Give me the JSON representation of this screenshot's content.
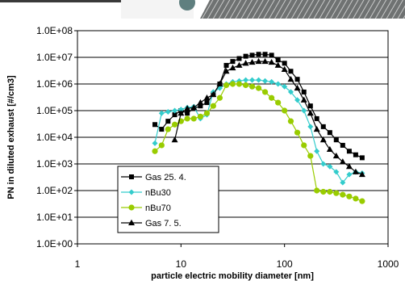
{
  "chart_data": {
    "type": "line",
    "xlabel": "particle electric mobility diameter [nm]",
    "ylabel": "PN in diluted exhaust [#/cm3]",
    "x_scale": "log",
    "y_scale": "log",
    "xlim": [
      1,
      1000
    ],
    "ylim": [
      1,
      100000000
    ],
    "x_ticks": [
      1,
      10,
      100,
      1000
    ],
    "x_tick_labels": [
      "1",
      "10",
      "100",
      "1000"
    ],
    "y_ticks": [
      1,
      10,
      100,
      1000,
      10000,
      100000,
      1000000,
      10000000,
      100000000
    ],
    "y_tick_labels": [
      "1.0E+00",
      "1.0E+01",
      "1.0E+02",
      "1.0E+03",
      "1.0E+04",
      "1.0E+05",
      "1.0E+06",
      "1.0E+07",
      "1.0E+08"
    ],
    "grid": "horizontal major",
    "legend_position": "lower-left",
    "series": [
      {
        "name": "Gas 25. 4.",
        "color": "#000000",
        "marker": "square",
        "x": [
          5.6,
          6.5,
          7.5,
          8.7,
          10,
          11.5,
          13.3,
          15.4,
          17.8,
          20.5,
          23.7,
          27.4,
          31.6,
          36.5,
          42.2,
          48.7,
          56.2,
          64.9,
          75,
          86.6,
          100,
          115,
          133,
          154,
          178,
          205,
          237,
          274,
          316,
          365,
          422,
          487,
          562
        ],
        "y": [
          30000,
          20000,
          40000,
          70000,
          100000,
          80000,
          120000,
          150000,
          200000,
          400000,
          1000000,
          5000000,
          7000000,
          9000000,
          11000000,
          12000000,
          13000000,
          13000000,
          12000000,
          8000000,
          6000000,
          3000000,
          1500000,
          500000,
          150000,
          50000,
          25000,
          15000,
          8000,
          5000,
          3000,
          2200,
          1700
        ]
      },
      {
        "name": "nBu30",
        "color": "#33CCCC",
        "marker": "diamond",
        "x": [
          5.6,
          6.5,
          7.5,
          8.7,
          10,
          11.5,
          13.3,
          15.4,
          17.8,
          20.5,
          23.7,
          27.4,
          31.6,
          36.5,
          42.2,
          48.7,
          56.2,
          64.9,
          75,
          86.6,
          100,
          115,
          133,
          154,
          178,
          205,
          237,
          274,
          316,
          365,
          422,
          487,
          562
        ],
        "y": [
          6000,
          80000,
          90000,
          100000,
          110000,
          130000,
          140000,
          50000,
          70000,
          500000,
          700000,
          1000000,
          1200000,
          1300000,
          1400000,
          1400000,
          1400000,
          1300000,
          1200000,
          1000000,
          800000,
          500000,
          250000,
          100000,
          25000,
          3000,
          1000,
          800,
          500,
          200,
          400,
          500,
          450
        ]
      },
      {
        "name": "nBu70",
        "color": "#99CC00",
        "marker": "circle",
        "x": [
          5.6,
          6.5,
          7.5,
          8.7,
          10,
          11.5,
          13.3,
          15.4,
          17.8,
          20.5,
          23.7,
          27.4,
          31.6,
          36.5,
          42.2,
          48.7,
          56.2,
          64.9,
          75,
          86.6,
          100,
          115,
          133,
          154,
          178,
          205,
          237,
          274,
          316,
          365,
          422,
          487,
          562
        ],
        "y": [
          3000,
          5000,
          20000,
          30000,
          40000,
          50000,
          50000,
          60000,
          80000,
          150000,
          300000,
          900000,
          1000000,
          1000000,
          900000,
          800000,
          700000,
          500000,
          300000,
          200000,
          100000,
          40000,
          15000,
          5000,
          2000,
          100,
          90,
          90,
          80,
          70,
          60,
          50,
          40
        ]
      },
      {
        "name": "Gas 7. 5.",
        "color": "#000000",
        "marker": "triangle",
        "x": [
          8.7,
          10,
          11.5,
          13.3,
          15.4,
          17.8,
          20.5,
          23.7,
          27.4,
          31.6,
          36.5,
          42.2,
          48.7,
          56.2,
          64.9,
          75,
          86.6,
          100,
          115,
          133,
          154,
          178,
          205,
          237,
          274,
          316,
          365,
          422,
          487,
          562
        ],
        "y": [
          8000,
          80000,
          120000,
          130000,
          200000,
          300000,
          400000,
          1000000,
          3000000,
          4000000,
          5000000,
          6000000,
          6500000,
          7000000,
          7000000,
          6500000,
          5000000,
          3500000,
          1500000,
          700000,
          250000,
          80000,
          20000,
          8000,
          3500,
          2000,
          1200,
          800,
          500,
          400
        ]
      }
    ]
  }
}
